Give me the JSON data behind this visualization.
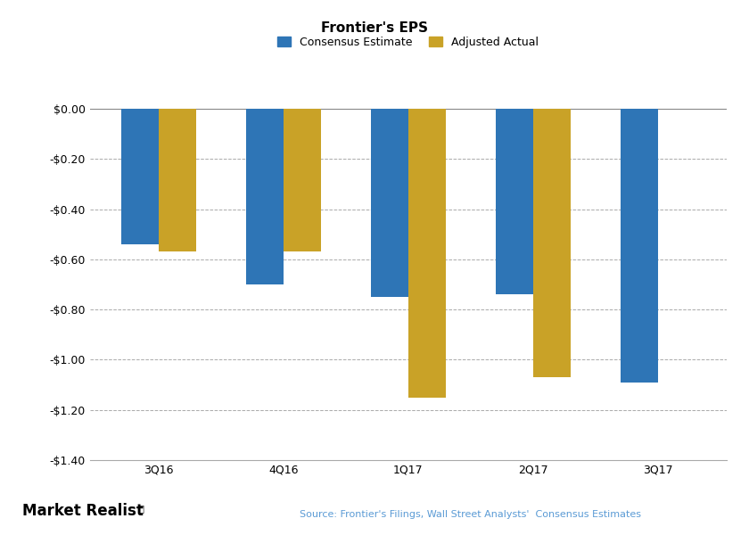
{
  "title": "Frontier's EPS",
  "categories": [
    "3Q16",
    "4Q16",
    "1Q17",
    "2Q17",
    "3Q17"
  ],
  "consensus": [
    -0.54,
    -0.7,
    -0.75,
    -0.74,
    -1.09
  ],
  "actual": [
    -0.57,
    -0.57,
    -1.15,
    -1.07,
    null
  ],
  "consensus_color": "#2E75B6",
  "actual_color": "#C9A227",
  "ylim": [
    -1.4,
    0.05
  ],
  "yticks": [
    0.0,
    -0.2,
    -0.4,
    -0.6,
    -0.8,
    -1.0,
    -1.2,
    -1.4
  ],
  "ytick_labels": [
    "$0.00",
    "-$0.20",
    "-$0.40",
    "-$0.60",
    "-$0.80",
    "-$1.00",
    "-$1.20",
    "-$1.40"
  ],
  "legend_labels": [
    "Consensus Estimate",
    "Adjusted Actual"
  ],
  "source_text": "Source: Frontier's Filings, Wall Street Analysts'  Consensus Estimates",
  "watermark": "Market Realist",
  "bar_width": 0.3,
  "background_color": "#FFFFFF",
  "grid_color": "#AAAAAA",
  "title_fontsize": 11,
  "legend_fontsize": 9,
  "tick_fontsize": 9,
  "source_fontsize": 8,
  "watermark_fontsize": 12
}
